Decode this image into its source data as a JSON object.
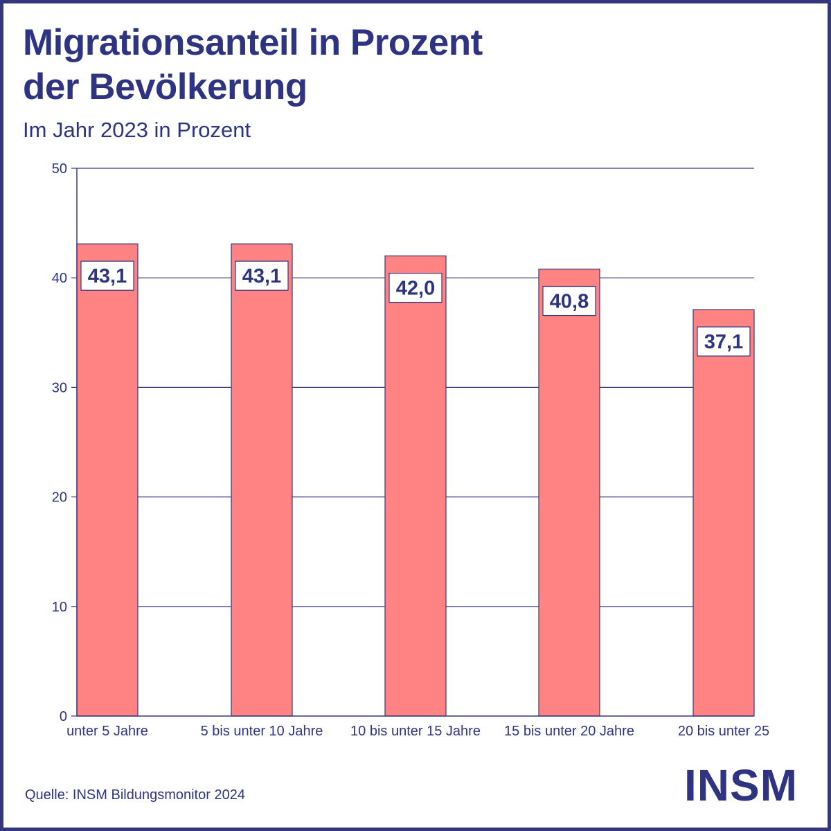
{
  "header": {
    "title_line1": "Migrationsanteil in Prozent",
    "title_line2": "der Bevölkerung",
    "subtitle": "Im Jahr 2023 in Prozent"
  },
  "footer": {
    "source": "Quelle: INSM Bildungsmonitor 2024",
    "logo_text": "INSM"
  },
  "colors": {
    "bar": "#ff8383",
    "accent": "#2e3382",
    "grid": "#34377e",
    "background": "#ffffff"
  },
  "chart_data": {
    "type": "bar",
    "title": "Migrationsanteil in Prozent der Bevölkerung",
    "subtitle": "Im Jahr 2023 in Prozent",
    "xlabel": "",
    "ylabel": "",
    "categories": [
      "unter 5 Jahre",
      "5 bis unter 10 Jahre",
      "10 bis unter 15 Jahre",
      "15 bis unter 20 Jahre",
      "20 bis unter 25"
    ],
    "values": [
      43.1,
      43.1,
      42.0,
      40.8,
      37.1
    ],
    "value_labels": [
      "43,1",
      "43,1",
      "42,0",
      "40,8",
      "37,1"
    ],
    "ylim": [
      0,
      50
    ],
    "yticks": [
      0,
      10,
      20,
      30,
      40,
      50
    ],
    "grid": true,
    "legend": "none"
  }
}
